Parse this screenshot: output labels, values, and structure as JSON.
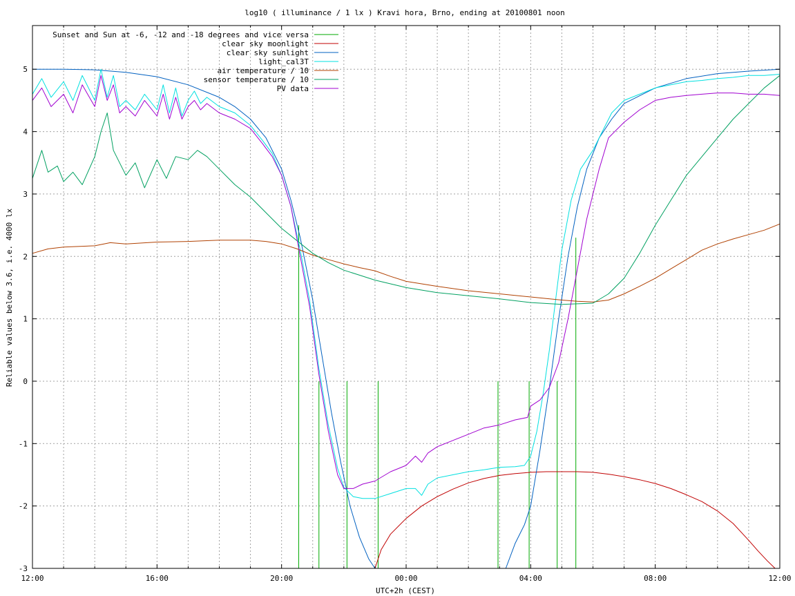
{
  "chart_data": {
    "type": "line",
    "title": "log10 ( illuminance / 1 lx ) Kravi hora, Brno, ending at 20100801 noon",
    "xlabel": "UTC+2h (CEST)",
    "ylabel": "Reliable values below 3.6, i.e. 4000 lx",
    "xlim": [
      12,
      36
    ],
    "ylim": [
      -3,
      5.7
    ],
    "grid": true,
    "legend_position": "top-left",
    "x_ticks": [
      {
        "value": 12,
        "label": "12:00"
      },
      {
        "value": 16,
        "label": "16:00"
      },
      {
        "value": 20,
        "label": "20:00"
      },
      {
        "value": 24,
        "label": "00:00"
      },
      {
        "value": 28,
        "label": "04:00"
      },
      {
        "value": 32,
        "label": "08:00"
      },
      {
        "value": 36,
        "label": "12:00"
      }
    ],
    "x_minor_grid": [
      13,
      14,
      15,
      17,
      18,
      19,
      21,
      22,
      23,
      25,
      26,
      27,
      29,
      30,
      31,
      33,
      34,
      35
    ],
    "y_ticks": [
      {
        "value": -3,
        "label": "-3"
      },
      {
        "value": -2,
        "label": "-2"
      },
      {
        "value": -1,
        "label": "-1"
      },
      {
        "value": 0,
        "label": "0"
      },
      {
        "value": 1,
        "label": "1"
      },
      {
        "value": 2,
        "label": "2"
      },
      {
        "value": 3,
        "label": "3"
      },
      {
        "value": 4,
        "label": "4"
      },
      {
        "value": 5,
        "label": "5"
      }
    ],
    "series": [
      {
        "name": "Sunset and Sun at -6, -12 and -18 degrees and vice versa",
        "color": "#00aa00",
        "kind": "impulses",
        "bars": [
          {
            "x": 20.55,
            "top": 2.5
          },
          {
            "x": 21.2,
            "top": 0
          },
          {
            "x": 22.1,
            "top": 0
          },
          {
            "x": 23.1,
            "top": 0
          },
          {
            "x": 26.95,
            "top": 0
          },
          {
            "x": 27.95,
            "top": 0
          },
          {
            "x": 28.85,
            "top": 0
          },
          {
            "x": 29.45,
            "top": 2.3
          }
        ]
      },
      {
        "name": "clear sky moonlight",
        "color": "#c00000",
        "x": [
          23.0,
          23.2,
          23.5,
          24.0,
          24.5,
          25.0,
          25.5,
          26.0,
          26.5,
          27.0,
          27.5,
          28.0,
          28.5,
          29.0,
          29.5,
          30.0,
          30.5,
          31.0,
          31.5,
          32.0,
          32.5,
          33.0,
          33.5,
          34.0,
          34.5,
          35.0,
          35.3,
          35.6,
          35.85
        ],
        "y": [
          -3.0,
          -2.7,
          -2.45,
          -2.2,
          -2.0,
          -1.85,
          -1.73,
          -1.63,
          -1.56,
          -1.51,
          -1.48,
          -1.46,
          -1.45,
          -1.45,
          -1.45,
          -1.46,
          -1.49,
          -1.53,
          -1.58,
          -1.64,
          -1.72,
          -1.82,
          -1.93,
          -2.08,
          -2.28,
          -2.55,
          -2.72,
          -2.88,
          -3.0
        ]
      },
      {
        "name": "clear sky sunlight",
        "color": "#0060c0",
        "x": [
          12.0,
          13.0,
          14.0,
          15.0,
          16.0,
          17.0,
          18.0,
          18.5,
          19.0,
          19.5,
          20.0,
          20.3,
          20.6,
          21.0,
          21.3,
          21.6,
          21.9,
          22.2,
          22.5,
          22.8,
          23.0,
          27.2,
          27.5,
          27.8,
          28.0,
          28.3,
          28.6,
          28.9,
          29.2,
          29.5,
          29.8,
          30.2,
          30.6,
          31.0,
          32.0,
          33.0,
          34.0,
          35.0,
          36.0
        ],
        "y": [
          5.0,
          5.0,
          4.99,
          4.95,
          4.88,
          4.75,
          4.55,
          4.4,
          4.2,
          3.9,
          3.4,
          2.9,
          2.3,
          1.3,
          0.4,
          -0.5,
          -1.3,
          -2.0,
          -2.5,
          -2.85,
          -3.0,
          -3.0,
          -2.6,
          -2.3,
          -2.0,
          -1.1,
          -0.1,
          1.0,
          2.0,
          2.8,
          3.4,
          3.9,
          4.2,
          4.45,
          4.7,
          4.85,
          4.93,
          4.97,
          5.0
        ]
      },
      {
        "name": "light_cal3T",
        "color": "#00e0e0",
        "x": [
          12.0,
          12.3,
          12.6,
          13.0,
          13.3,
          13.6,
          14.0,
          14.2,
          14.4,
          14.6,
          14.8,
          15.0,
          15.3,
          15.6,
          16.0,
          16.2,
          16.4,
          16.6,
          16.8,
          17.0,
          17.2,
          17.4,
          17.6,
          18.0,
          18.5,
          19.0,
          19.4,
          19.7,
          20.0,
          20.3,
          20.6,
          20.9,
          21.2,
          21.5,
          21.8,
          22.0,
          22.3,
          22.6,
          23.0,
          23.5,
          24.0,
          24.3,
          24.5,
          24.7,
          25.0,
          25.5,
          26.0,
          26.5,
          27.0,
          27.5,
          27.8,
          28.0,
          28.2,
          28.4,
          28.6,
          28.8,
          29.0,
          29.3,
          29.6,
          30.0,
          30.3,
          30.6,
          31.0,
          31.5,
          32.0,
          32.5,
          33.0,
          33.5,
          34.0,
          34.5,
          35.0,
          35.5,
          36.0
        ],
        "y": [
          4.6,
          4.85,
          4.55,
          4.8,
          4.5,
          4.9,
          4.5,
          5.0,
          4.55,
          4.9,
          4.4,
          4.5,
          4.35,
          4.6,
          4.35,
          4.75,
          4.3,
          4.7,
          4.25,
          4.5,
          4.65,
          4.45,
          4.55,
          4.4,
          4.3,
          4.1,
          3.85,
          3.65,
          3.3,
          2.8,
          2.1,
          1.3,
          0.2,
          -0.7,
          -1.4,
          -1.7,
          -1.85,
          -1.88,
          -1.88,
          -1.8,
          -1.72,
          -1.72,
          -1.83,
          -1.65,
          -1.55,
          -1.5,
          -1.45,
          -1.42,
          -1.38,
          -1.37,
          -1.35,
          -1.2,
          -0.8,
          -0.2,
          0.5,
          1.3,
          2.1,
          2.9,
          3.4,
          3.7,
          4.0,
          4.3,
          4.5,
          4.6,
          4.7,
          4.75,
          4.8,
          4.82,
          4.85,
          4.87,
          4.9,
          4.9,
          4.92
        ]
      },
      {
        "name": "air temperature / 10",
        "color": "#b04000",
        "x": [
          12.0,
          12.5,
          13.0,
          14.0,
          14.5,
          15.0,
          16.0,
          17.0,
          18.0,
          19.0,
          19.5,
          20.0,
          20.5,
          21.0,
          21.5,
          22.0,
          22.5,
          23.0,
          23.5,
          24.0,
          25.0,
          26.0,
          27.0,
          28.0,
          29.0,
          29.5,
          30.0,
          30.5,
          31.0,
          31.5,
          32.0,
          32.5,
          33.0,
          33.5,
          34.0,
          34.5,
          35.0,
          35.5,
          36.0
        ],
        "y": [
          2.05,
          2.12,
          2.15,
          2.17,
          2.22,
          2.2,
          2.23,
          2.24,
          2.26,
          2.26,
          2.24,
          2.2,
          2.12,
          2.02,
          1.95,
          1.88,
          1.82,
          1.77,
          1.68,
          1.6,
          1.52,
          1.45,
          1.4,
          1.35,
          1.3,
          1.28,
          1.27,
          1.3,
          1.4,
          1.52,
          1.65,
          1.8,
          1.95,
          2.1,
          2.2,
          2.28,
          2.35,
          2.42,
          2.52
        ]
      },
      {
        "name": "sensor temperature / 10",
        "color": "#00a060",
        "x": [
          12.0,
          12.3,
          12.5,
          12.8,
          13.0,
          13.3,
          13.6,
          14.0,
          14.2,
          14.4,
          14.6,
          14.8,
          15.0,
          15.3,
          15.6,
          16.0,
          16.3,
          16.6,
          17.0,
          17.3,
          17.6,
          18.0,
          18.5,
          19.0,
          19.5,
          20.0,
          20.5,
          21.0,
          21.5,
          22.0,
          22.5,
          23.0,
          24.0,
          25.0,
          26.0,
          27.0,
          28.0,
          29.0,
          30.0,
          30.5,
          31.0,
          31.5,
          32.0,
          32.5,
          33.0,
          33.5,
          34.0,
          34.5,
          35.0,
          35.5,
          36.0
        ],
        "y": [
          3.25,
          3.7,
          3.35,
          3.45,
          3.2,
          3.35,
          3.15,
          3.6,
          4.0,
          4.3,
          3.7,
          3.5,
          3.3,
          3.5,
          3.1,
          3.55,
          3.25,
          3.6,
          3.55,
          3.7,
          3.6,
          3.4,
          3.15,
          2.95,
          2.7,
          2.45,
          2.25,
          2.05,
          1.9,
          1.78,
          1.7,
          1.62,
          1.5,
          1.42,
          1.37,
          1.32,
          1.26,
          1.23,
          1.25,
          1.4,
          1.65,
          2.05,
          2.5,
          2.9,
          3.3,
          3.6,
          3.9,
          4.2,
          4.45,
          4.7,
          4.9
        ]
      },
      {
        "name": "PV data",
        "color": "#a000d0",
        "x": [
          12.0,
          12.3,
          12.6,
          13.0,
          13.3,
          13.6,
          14.0,
          14.2,
          14.4,
          14.6,
          14.8,
          15.0,
          15.3,
          15.6,
          16.0,
          16.2,
          16.4,
          16.6,
          16.8,
          17.0,
          17.2,
          17.4,
          17.6,
          18.0,
          18.5,
          19.0,
          19.4,
          19.7,
          20.0,
          20.3,
          20.6,
          20.9,
          21.2,
          21.5,
          21.8,
          22.0,
          22.3,
          22.6,
          23.0,
          23.5,
          24.0,
          24.3,
          24.5,
          24.7,
          25.0,
          25.5,
          26.0,
          26.5,
          27.0,
          27.5,
          27.9,
          28.0,
          28.3,
          28.6,
          28.9,
          29.2,
          29.5,
          29.8,
          30.2,
          30.5,
          31.0,
          31.5,
          32.0,
          32.5,
          33.0,
          33.5,
          34.0,
          34.5,
          35.0,
          35.5,
          36.0
        ],
        "y": [
          4.5,
          4.7,
          4.4,
          4.6,
          4.3,
          4.75,
          4.4,
          4.9,
          4.5,
          4.75,
          4.3,
          4.4,
          4.25,
          4.5,
          4.25,
          4.6,
          4.2,
          4.55,
          4.2,
          4.4,
          4.5,
          4.35,
          4.45,
          4.3,
          4.2,
          4.05,
          3.8,
          3.6,
          3.3,
          2.8,
          2.0,
          1.2,
          0.1,
          -0.8,
          -1.5,
          -1.72,
          -1.72,
          -1.65,
          -1.6,
          -1.45,
          -1.35,
          -1.2,
          -1.3,
          -1.15,
          -1.05,
          -0.95,
          -0.85,
          -0.75,
          -0.7,
          -0.62,
          -0.58,
          -0.4,
          -0.3,
          -0.1,
          0.3,
          1.0,
          1.8,
          2.6,
          3.4,
          3.9,
          4.15,
          4.35,
          4.5,
          4.55,
          4.58,
          4.6,
          4.62,
          4.62,
          4.6,
          4.6,
          4.58
        ]
      }
    ]
  }
}
